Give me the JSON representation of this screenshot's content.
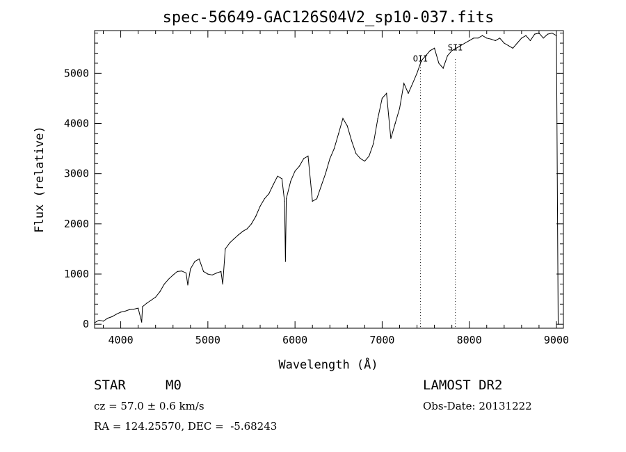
{
  "chart_data": {
    "type": "line",
    "title": "spec-56649-GAC126S04V2_sp10-037.fits",
    "xlabel": "Wavelength (Å)",
    "ylabel": "Flux (relative)",
    "xlim": [
      3700,
      9080
    ],
    "ylim": [
      -80,
      5850
    ],
    "xticks": [
      4000,
      5000,
      6000,
      7000,
      8000,
      9000
    ],
    "yticks": [
      0,
      1000,
      2000,
      3000,
      4000,
      5000
    ],
    "grid": false,
    "series": [
      {
        "x": [
          3700,
          3750,
          3800,
          3850,
          3900,
          3950,
          4000,
          4050,
          4100,
          4150,
          4200,
          4240,
          4250,
          4300,
          4350,
          4400,
          4450,
          4500,
          4550,
          4600,
          4650,
          4700,
          4750,
          4770,
          4800,
          4850,
          4900,
          4950,
          5000,
          5050,
          5100,
          5150,
          5170,
          5200,
          5250,
          5300,
          5350,
          5400,
          5450,
          5500,
          5550,
          5600,
          5650,
          5700,
          5750,
          5800,
          5850,
          5880,
          5890,
          5900,
          5950,
          6000,
          6050,
          6100,
          6150,
          6200,
          6250,
          6300,
          6350,
          6400,
          6450,
          6500,
          6550,
          6600,
          6650,
          6700,
          6750,
          6800,
          6850,
          6900,
          6950,
          7000,
          7050,
          7100,
          7150,
          7200,
          7250,
          7300,
          7350,
          7400,
          7450,
          7500,
          7550,
          7600,
          7650,
          7700,
          7750,
          7800,
          7850,
          7900,
          7950,
          8000,
          8050,
          8100,
          8150,
          8200,
          8250,
          8300,
          8350,
          8400,
          8450,
          8500,
          8550,
          8600,
          8650,
          8700,
          8750,
          8800,
          8850,
          8900,
          8950,
          9000,
          9020
        ],
        "y": [
          30,
          80,
          60,
          120,
          150,
          200,
          240,
          260,
          290,
          300,
          320,
          40,
          350,
          420,
          480,
          540,
          650,
          800,
          900,
          980,
          1050,
          1060,
          1020,
          780,
          1100,
          1250,
          1300,
          1050,
          1000,
          980,
          1020,
          1050,
          800,
          1500,
          1620,
          1700,
          1780,
          1850,
          1900,
          2000,
          2150,
          2350,
          2500,
          2600,
          2780,
          2950,
          2900,
          2450,
          1250,
          2500,
          2850,
          3050,
          3150,
          3300,
          3350,
          2450,
          2500,
          2750,
          3000,
          3300,
          3500,
          3800,
          4100,
          3950,
          3650,
          3400,
          3300,
          3250,
          3350,
          3600,
          4100,
          4500,
          4600,
          3700,
          4000,
          4300,
          4800,
          4600,
          4800,
          5000,
          5250,
          5350,
          5450,
          5500,
          5200,
          5100,
          5350,
          5450,
          5500,
          5550,
          5600,
          5650,
          5700,
          5700,
          5750,
          5700,
          5680,
          5650,
          5700,
          5600,
          5550,
          5500,
          5600,
          5700,
          5750,
          5650,
          5780,
          5800,
          5700,
          5780,
          5800,
          5750,
          0
        ]
      }
    ],
    "lines": [
      {
        "label": "OII",
        "x": 7440
      },
      {
        "label": "SII",
        "x": 7840
      }
    ]
  },
  "info": {
    "object_class": "STAR",
    "subclass": "M0",
    "survey": "LAMOST DR2",
    "cz": "cz = 57.0 ± 0.6 km/s",
    "obs_date": "Obs-Date: 20131222",
    "radec": "RA = 124.25570, DEC =  -5.68243"
  }
}
